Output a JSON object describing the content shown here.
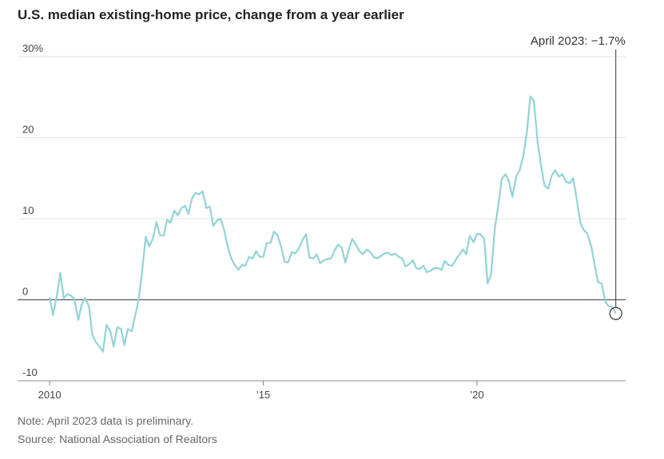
{
  "chart_data": {
    "type": "line",
    "title": "U.S. median existing-home price, change from a year earlier",
    "annotation": "April 2023: −1.7%",
    "note": "Note: April 2023 data is preliminary.",
    "source": "Source: National Association of Realtors",
    "xlim": [
      2009.25,
      2023.48
    ],
    "xticks": [
      2010,
      {
        "value": 2015,
        "label": "’15"
      },
      {
        "value": 2020,
        "label": "’20"
      }
    ],
    "ylim": [
      -10,
      30
    ],
    "yticks": [
      -10,
      0,
      10,
      20,
      {
        "value": 30,
        "label": "30%"
      }
    ],
    "grid": true,
    "x": [
      2010,
      2010.08,
      2010.17,
      2010.25,
      2010.33,
      2010.42,
      2010.5,
      2010.58,
      2010.67,
      2010.75,
      2010.83,
      2010.92,
      2011,
      2011.08,
      2011.17,
      2011.25,
      2011.33,
      2011.42,
      2011.5,
      2011.58,
      2011.67,
      2011.75,
      2011.83,
      2011.92,
      2012,
      2012.08,
      2012.17,
      2012.25,
      2012.33,
      2012.42,
      2012.5,
      2012.58,
      2012.67,
      2012.75,
      2012.83,
      2012.92,
      2013,
      2013.08,
      2013.17,
      2013.25,
      2013.33,
      2013.42,
      2013.5,
      2013.58,
      2013.67,
      2013.75,
      2013.83,
      2013.92,
      2014,
      2014.08,
      2014.17,
      2014.25,
      2014.33,
      2014.42,
      2014.5,
      2014.58,
      2014.67,
      2014.75,
      2014.83,
      2014.92,
      2015,
      2015.08,
      2015.17,
      2015.25,
      2015.33,
      2015.42,
      2015.5,
      2015.58,
      2015.67,
      2015.75,
      2015.83,
      2015.92,
      2016,
      2016.08,
      2016.17,
      2016.25,
      2016.33,
      2016.42,
      2016.5,
      2016.58,
      2016.67,
      2016.75,
      2016.83,
      2016.92,
      2017,
      2017.08,
      2017.17,
      2017.25,
      2017.33,
      2017.42,
      2017.5,
      2017.58,
      2017.67,
      2017.75,
      2017.83,
      2017.92,
      2018,
      2018.08,
      2018.17,
      2018.25,
      2018.33,
      2018.42,
      2018.5,
      2018.58,
      2018.67,
      2018.75,
      2018.83,
      2018.92,
      2019,
      2019.08,
      2019.17,
      2019.25,
      2019.33,
      2019.42,
      2019.5,
      2019.58,
      2019.67,
      2019.75,
      2019.83,
      2019.92,
      2020,
      2020.08,
      2020.17,
      2020.25,
      2020.33,
      2020.42,
      2020.5,
      2020.58,
      2020.67,
      2020.75,
      2020.83,
      2020.92,
      2021,
      2021.08,
      2021.17,
      2021.25,
      2021.33,
      2021.42,
      2021.5,
      2021.58,
      2021.67,
      2021.75,
      2021.83,
      2021.92,
      2022,
      2022.08,
      2022.17,
      2022.25,
      2022.33,
      2022.42,
      2022.5,
      2022.58,
      2022.67,
      2022.75,
      2022.83,
      2022.92,
      2023,
      2023.08,
      2023.17,
      2023.25
    ],
    "series": [
      {
        "color": "#92d3d6",
        "values": [
          0.3,
          -1.9,
          0.5,
          3.3,
          0.2,
          0.7,
          0.5,
          0.1,
          -2.5,
          -0.6,
          0.2,
          -0.8,
          -4.3,
          -5.2,
          -5.8,
          -6.4,
          -3.1,
          -3.9,
          -5.8,
          -3.4,
          -3.6,
          -5.6,
          -3.6,
          -3.9,
          -2.0,
          -0.1,
          3.8,
          7.8,
          6.6,
          7.6,
          9.6,
          8.0,
          7.9,
          9.9,
          9.5,
          11.0,
          10.4,
          11.3,
          11.6,
          10.6,
          12.5,
          13.2,
          13.0,
          13.4,
          11.3,
          11.5,
          9.1,
          9.8,
          10.0,
          8.7,
          6.5,
          5.1,
          4.3,
          3.7,
          4.3,
          4.2,
          5.3,
          5.1,
          6.0,
          5.3,
          5.3,
          7.0,
          7.0,
          8.4,
          8.0,
          6.5,
          4.7,
          4.6,
          5.9,
          5.7,
          6.3,
          7.4,
          8.1,
          5.2,
          5.1,
          5.6,
          4.5,
          4.9,
          5.0,
          5.1,
          6.1,
          6.8,
          6.5,
          4.6,
          6.1,
          7.5,
          6.8,
          6.0,
          5.6,
          6.2,
          5.9,
          5.3,
          5.1,
          5.4,
          5.7,
          5.8,
          5.5,
          5.7,
          5.3,
          5.1,
          4.1,
          4.4,
          4.9,
          3.9,
          3.8,
          4.2,
          3.4,
          3.6,
          3.9,
          3.9,
          3.7,
          4.8,
          4.3,
          4.2,
          4.9,
          5.5,
          6.2,
          5.6,
          7.9,
          7.1,
          8.1,
          8.1,
          7.5,
          2.0,
          3.1,
          8.9,
          11.6,
          14.9,
          15.5,
          14.6,
          12.7,
          15.2,
          16.0,
          17.6,
          20.7,
          25.1,
          24.6,
          19.5,
          16.6,
          14.1,
          13.7,
          15.3,
          16.0,
          15.2,
          15.5,
          14.6,
          14.4,
          15.0,
          12.6,
          9.5,
          8.6,
          8.2,
          6.7,
          4.5,
          2.2,
          2.0,
          -0.2,
          -0.8,
          -0.9,
          -1.7
        ]
      }
    ]
  }
}
